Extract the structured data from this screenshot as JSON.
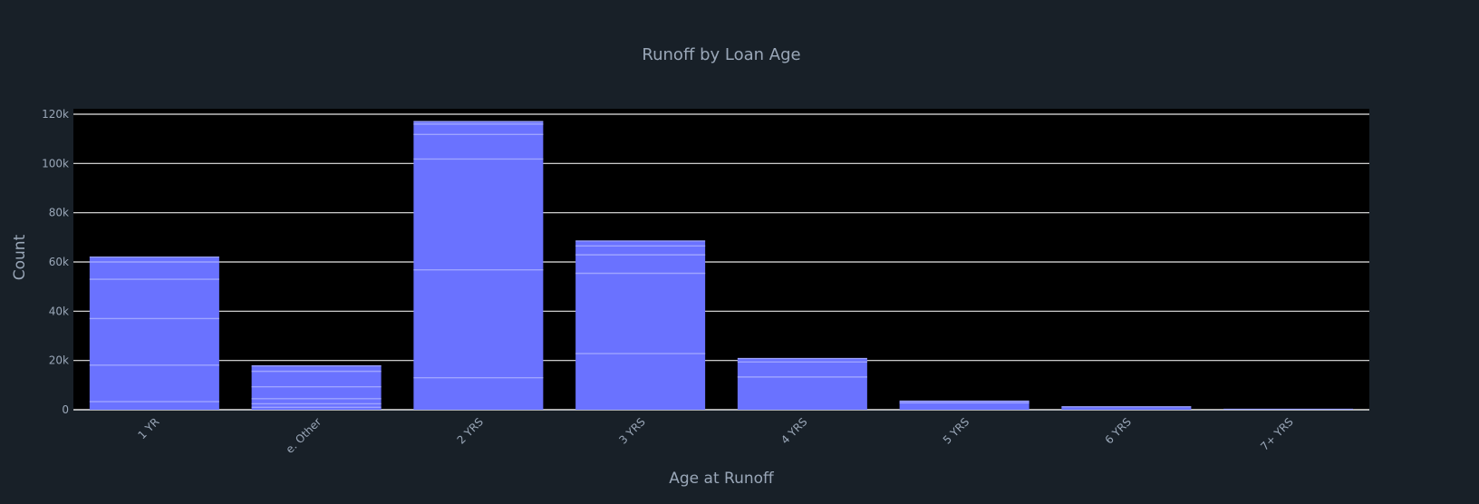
{
  "chart_data": {
    "type": "bar",
    "title": "Runoff by Loan Age",
    "xlabel": "Age at Runoff",
    "ylabel": "Count",
    "categories": [
      "1 YR",
      "e. Other",
      "2 YRS",
      "3 YRS",
      "4 YRS",
      "5 YRS",
      "6 YRS",
      "7+ YRS"
    ],
    "values": [
      62000,
      17800,
      117000,
      68500,
      20800,
      3500,
      1200,
      200
    ],
    "segment_boundaries": [
      [
        3300,
        18100,
        37000,
        53000,
        60000
      ],
      [
        1000,
        2400,
        4500,
        9300,
        15600
      ],
      [
        13000,
        56800,
        101800,
        111800,
        116000
      ],
      [
        22800,
        55400,
        62900,
        66500
      ],
      [
        13300,
        19400
      ],
      [
        2800
      ],
      [],
      []
    ],
    "ylim": [
      0,
      120000
    ],
    "yticks": [
      0,
      20000,
      40000,
      60000,
      80000,
      100000,
      120000
    ],
    "ytick_labels": [
      "0",
      "20k",
      "40k",
      "60k",
      "80k",
      "100k",
      "120k"
    ],
    "grid": true,
    "legend": false,
    "colors": {
      "page_bg": "#182028",
      "plot_bg": "#000000",
      "bar": "#6a72ff",
      "segment_line": "#9ea4ff",
      "grid": "#e6e6e6",
      "text": "#9aa7b8"
    }
  }
}
